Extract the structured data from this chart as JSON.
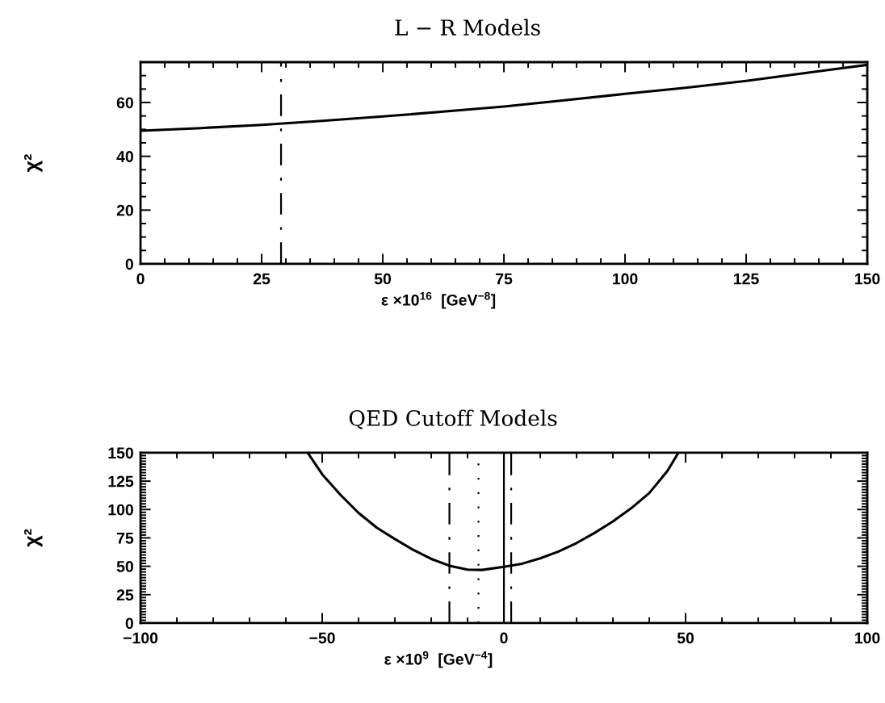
{
  "chart_data": [
    {
      "type": "line",
      "title": "L − R Models",
      "xlabel": "ε ×10$^{16}$  [GeV$^{−8}$]",
      "ylabel": "χ²",
      "color": "#000000",
      "x": [
        0,
        12.5,
        25,
        37.5,
        50,
        62.5,
        75,
        87.5,
        100,
        112.5,
        125,
        137.5,
        150
      ],
      "values": [
        49.5,
        50.5,
        51.7,
        53.2,
        54.8,
        56.6,
        58.5,
        60.8,
        63.2,
        65.5,
        68,
        71,
        74
      ],
      "xlim": [
        0,
        150
      ],
      "ylim": [
        0,
        75
      ],
      "xticks": [
        0,
        {
          "value": 5,
          "label": null
        },
        {
          "value": 10,
          "label": null
        },
        {
          "value": 15,
          "label": null
        },
        {
          "value": 20,
          "label": null
        },
        25,
        {
          "value": 30,
          "label": null
        },
        {
          "value": 35,
          "label": null
        },
        {
          "value": 40,
          "label": null
        },
        {
          "value": 45,
          "label": null
        },
        50,
        {
          "value": 55,
          "label": null
        },
        {
          "value": 60,
          "label": null
        },
        {
          "value": 65,
          "label": null
        },
        {
          "value": 70,
          "label": null
        },
        75,
        {
          "value": 80,
          "label": null
        },
        {
          "value": 85,
          "label": null
        },
        {
          "value": 90,
          "label": null
        },
        {
          "value": 95,
          "label": null
        },
        100,
        {
          "value": 105,
          "label": null
        },
        {
          "value": 110,
          "label": null
        },
        {
          "value": 115,
          "label": null
        },
        {
          "value": 120,
          "label": null
        },
        125,
        {
          "value": 130,
          "label": null
        },
        {
          "value": 135,
          "label": null
        },
        {
          "value": 140,
          "label": null
        },
        {
          "value": 145,
          "label": null
        },
        150
      ],
      "yticks": [
        0,
        {
          "value": 5,
          "label": null
        },
        {
          "value": 10,
          "label": null
        },
        {
          "value": 15,
          "label": null
        },
        20,
        {
          "value": 25,
          "label": null
        },
        {
          "value": 30,
          "label": null
        },
        {
          "value": 35,
          "label": null
        },
        40,
        {
          "value": 45,
          "label": null
        },
        {
          "value": 50,
          "label": null
        },
        {
          "value": 55,
          "label": null
        },
        60,
        {
          "value": 65,
          "label": null
        },
        {
          "value": 70,
          "label": null
        }
      ],
      "ref_lines": [
        {
          "axis": "x",
          "value": 29,
          "line_style": "dashdot",
          "color": "#000000"
        }
      ]
    },
    {
      "type": "line",
      "title": "QED Cutoff Models",
      "xlabel": "ε ×10$^{9}$  [GeV$^{−4}$]",
      "ylabel": "χ²",
      "color": "#000000",
      "x": [
        -54,
        -50,
        -45,
        -40,
        -35,
        -30,
        -25,
        -20,
        -15,
        -10,
        -6,
        0,
        5,
        10,
        15,
        20,
        25,
        30,
        35,
        40,
        45,
        48
      ],
      "values": [
        150,
        131,
        113,
        97,
        84,
        74,
        64.5,
        56.5,
        50.5,
        47,
        46.8,
        49.5,
        52.3,
        57,
        63,
        70.5,
        79.5,
        89.5,
        101,
        114.5,
        134,
        150
      ],
      "xlim": [
        -100,
        100
      ],
      "ylim": [
        0,
        150
      ],
      "xticks": [
        {
          "value": -100,
          "label": "−100"
        },
        {
          "value": -90,
          "label": null
        },
        {
          "value": -80,
          "label": null
        },
        {
          "value": -70,
          "label": null
        },
        {
          "value": -60,
          "label": null
        },
        {
          "value": -50,
          "label": "−50"
        },
        {
          "value": -40,
          "label": null
        },
        {
          "value": -30,
          "label": null
        },
        {
          "value": -20,
          "label": null
        },
        {
          "value": -10,
          "label": null
        },
        0,
        {
          "value": 10,
          "label": null
        },
        {
          "value": 20,
          "label": null
        },
        {
          "value": 30,
          "label": null
        },
        {
          "value": 40,
          "label": null
        },
        50,
        {
          "value": 60,
          "label": null
        },
        {
          "value": 70,
          "label": null
        },
        {
          "value": 80,
          "label": null
        },
        {
          "value": 90,
          "label": null
        },
        100
      ],
      "yticks": [
        0,
        {
          "value": 2.5,
          "label": null
        },
        {
          "value": 5,
          "label": null
        },
        {
          "value": 7.5,
          "label": null
        },
        {
          "value": 10,
          "label": null
        },
        {
          "value": 12.5,
          "label": null
        },
        {
          "value": 15,
          "label": null
        },
        {
          "value": 17.5,
          "label": null
        },
        {
          "value": 20,
          "label": null
        },
        {
          "value": 22.5,
          "label": null
        },
        25,
        {
          "value": 27.5,
          "label": null
        },
        {
          "value": 30,
          "label": null
        },
        {
          "value": 32.5,
          "label": null
        },
        {
          "value": 35,
          "label": null
        },
        {
          "value": 37.5,
          "label": null
        },
        {
          "value": 40,
          "label": null
        },
        {
          "value": 42.5,
          "label": null
        },
        {
          "value": 45,
          "label": null
        },
        {
          "value": 47.5,
          "label": null
        },
        50,
        {
          "value": 52.5,
          "label": null
        },
        {
          "value": 55,
          "label": null
        },
        {
          "value": 57.5,
          "label": null
        },
        {
          "value": 60,
          "label": null
        },
        {
          "value": 62.5,
          "label": null
        },
        {
          "value": 65,
          "label": null
        },
        {
          "value": 67.5,
          "label": null
        },
        {
          "value": 70,
          "label": null
        },
        {
          "value": 72.5,
          "label": null
        },
        75,
        {
          "value": 77.5,
          "label": null
        },
        {
          "value": 80,
          "label": null
        },
        {
          "value": 82.5,
          "label": null
        },
        {
          "value": 85,
          "label": null
        },
        {
          "value": 87.5,
          "label": null
        },
        {
          "value": 90,
          "label": null
        },
        {
          "value": 92.5,
          "label": null
        },
        {
          "value": 95,
          "label": null
        },
        {
          "value": 97.5,
          "label": null
        },
        100,
        {
          "value": 102.5,
          "label": null
        },
        {
          "value": 105,
          "label": null
        },
        {
          "value": 107.5,
          "label": null
        },
        {
          "value": 110,
          "label": null
        },
        {
          "value": 112.5,
          "label": null
        },
        {
          "value": 115,
          "label": null
        },
        {
          "value": 117.5,
          "label": null
        },
        {
          "value": 120,
          "label": null
        },
        {
          "value": 122.5,
          "label": null
        },
        125,
        {
          "value": 127.5,
          "label": null
        },
        {
          "value": 130,
          "label": null
        },
        {
          "value": 132.5,
          "label": null
        },
        {
          "value": 135,
          "label": null
        },
        {
          "value": 137.5,
          "label": null
        },
        {
          "value": 140,
          "label": null
        },
        {
          "value": 142.5,
          "label": null
        },
        {
          "value": 145,
          "label": null
        },
        {
          "value": 147.5,
          "label": null
        },
        150
      ],
      "ref_lines": [
        {
          "axis": "x",
          "value": -15,
          "line_style": "dashdot",
          "color": "#000000"
        },
        {
          "axis": "x",
          "value": -7,
          "line_style": "dotted",
          "color": "#000000"
        },
        {
          "axis": "x",
          "value": 0,
          "line_style": "solid",
          "color": "#000000"
        },
        {
          "axis": "x",
          "value": 2,
          "line_style": "dashdot",
          "color": "#000000"
        }
      ]
    }
  ]
}
